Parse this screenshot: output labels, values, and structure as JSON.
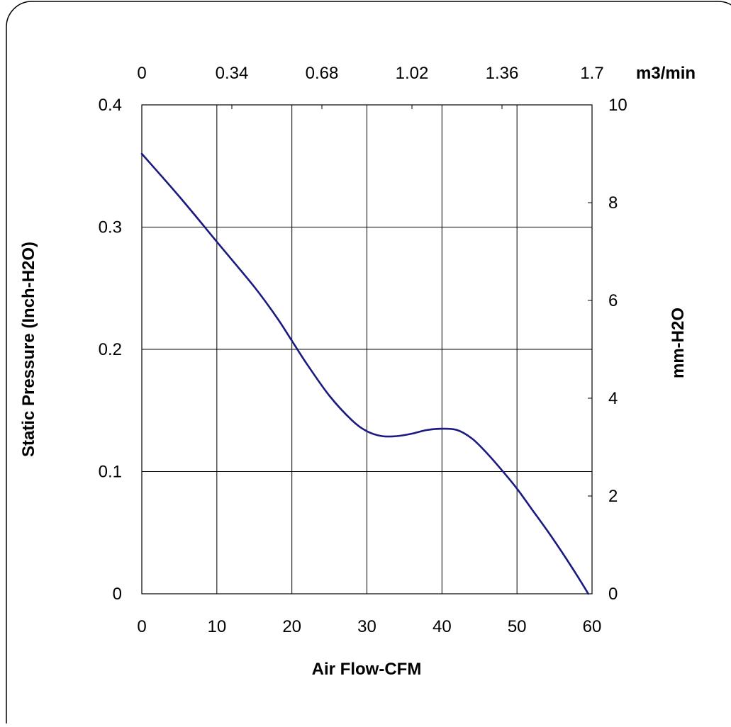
{
  "chart_data": {
    "type": "line",
    "xlabel": "Air Flow-CFM",
    "ylabel": "Static Pressure (Inch-H2O)",
    "y2label": "mm-H2O",
    "x2unit": "m3/min",
    "xlim": [
      0,
      60
    ],
    "ylim": [
      0,
      0.4
    ],
    "y2lim": [
      0,
      10
    ],
    "x_ticks": [
      "0",
      "10",
      "20",
      "30",
      "40",
      "50",
      "60"
    ],
    "y_ticks": [
      "0",
      "0.1",
      "0.2",
      "0.3",
      "0.4"
    ],
    "y2_ticks": [
      "0",
      "2",
      "4",
      "6",
      "8",
      "10"
    ],
    "x2_ticks": [
      "0",
      "0.34",
      "0.68",
      "1.02",
      "1.36",
      "1.7"
    ],
    "grid": true,
    "line_color": "#1a1a80",
    "series": [
      {
        "x": [
          0,
          5,
          10,
          15,
          18,
          20,
          22,
          25,
          28,
          30,
          32,
          34,
          36,
          38,
          40,
          42,
          44,
          46,
          48,
          50,
          52,
          54,
          56,
          58,
          59.5
        ],
        "y": [
          0.36,
          0.325,
          0.288,
          0.251,
          0.226,
          0.207,
          0.188,
          0.162,
          0.142,
          0.133,
          0.129,
          0.129,
          0.131,
          0.134,
          0.135,
          0.134,
          0.127,
          0.115,
          0.101,
          0.086,
          0.069,
          0.052,
          0.034,
          0.015,
          0.0
        ]
      }
    ]
  }
}
